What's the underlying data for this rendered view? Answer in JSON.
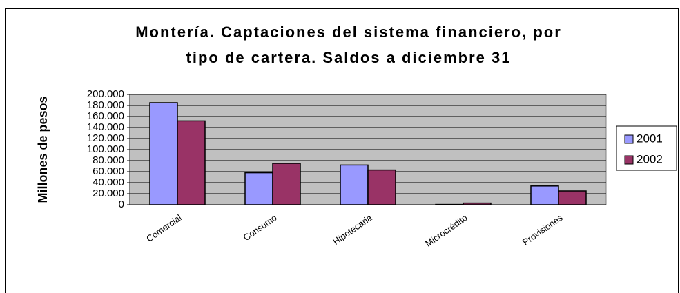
{
  "chart_data": {
    "type": "bar",
    "title": [
      "Montería. Captaciones del sistema financiero, por",
      "tipo de cartera. Saldos a diciembre 31"
    ],
    "y_label": "Millones de pesos",
    "categories": [
      "Comercial",
      "Consumo",
      "Hipotecaria",
      "Microcrédito",
      "Provisiones"
    ],
    "series": [
      {
        "name": "2001",
        "color": "#9999ff",
        "values": [
          185000,
          58000,
          72000,
          500,
          34000
        ]
      },
      {
        "name": "2002",
        "color": "#993366",
        "values": [
          152000,
          75000,
          63000,
          3000,
          25000
        ]
      }
    ],
    "ylim": [
      0,
      200000
    ],
    "yticks": [
      0,
      {
        "value": 20000,
        "label": "20.000"
      },
      {
        "value": 40000,
        "label": "40.000"
      },
      {
        "value": 60000,
        "label": "60.000"
      },
      {
        "value": 80000,
        "label": "80.000"
      },
      {
        "value": 100000,
        "label": "100.000"
      },
      {
        "value": 120000,
        "label": "120.000"
      },
      {
        "value": 140000,
        "label": "140.000"
      },
      {
        "value": 160000,
        "label": "160.000"
      },
      {
        "value": 180000,
        "label": "180.000"
      },
      {
        "value": 200000,
        "label": "200.000"
      }
    ],
    "grid": true,
    "legend": "right"
  }
}
